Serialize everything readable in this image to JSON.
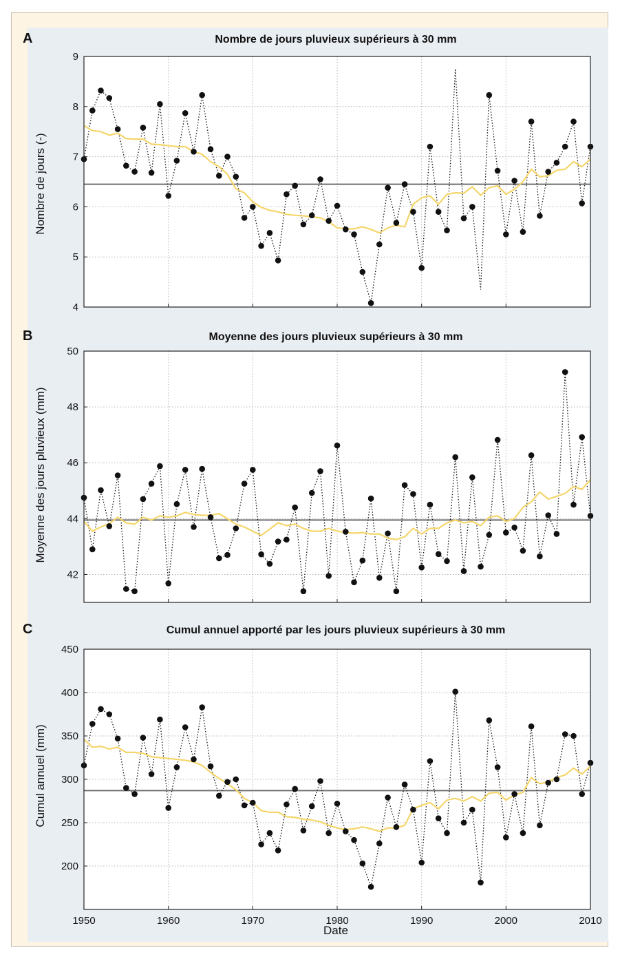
{
  "colors": {
    "frame_bg": "#fdf4e3",
    "inner_bg": "#e9eef3",
    "points": "#111111",
    "mean_line": "#6e6e6e",
    "smooth_line": "#f5d66b"
  },
  "xlabel": "Date",
  "chart_data": [
    {
      "type": "line",
      "letter": "A",
      "title": "Nombre de jours pluvieux supérieurs à 30 mm",
      "ylabel": "Nombre de jours (-)",
      "xlim": [
        1950,
        2010
      ],
      "ylim": [
        4,
        9
      ],
      "yticks": [
        4,
        5,
        6,
        7,
        8,
        9
      ],
      "xticks": [
        1950,
        1960,
        1970,
        1980,
        1990,
        2000,
        2010
      ],
      "grid": true,
      "mean": 6.45,
      "x": [
        1950,
        1951,
        1952,
        1953,
        1954,
        1955,
        1956,
        1957,
        1958,
        1959,
        1960,
        1961,
        1962,
        1963,
        1964,
        1965,
        1966,
        1967,
        1968,
        1969,
        1970,
        1971,
        1972,
        1973,
        1974,
        1975,
        1976,
        1977,
        1978,
        1979,
        1980,
        1981,
        1982,
        1983,
        1984,
        1985,
        1986,
        1987,
        1988,
        1989,
        1990,
        1991,
        1992,
        1993,
        1994,
        1995,
        1996,
        1997,
        1998,
        1999,
        2000,
        2001,
        2002,
        2003,
        2004,
        2005,
        2006,
        2007,
        2008,
        2009,
        2010
      ],
      "series": [
        {
          "values": [
            6.95,
            7.92,
            8.32,
            8.17,
            7.55,
            6.82,
            6.7,
            7.58,
            6.68,
            8.05,
            6.22,
            6.92,
            7.87,
            7.1,
            8.23,
            7.15,
            6.62,
            7.0,
            6.6,
            5.78,
            6.0,
            5.22,
            5.48,
            4.93,
            6.25,
            6.42,
            5.65,
            5.83,
            6.55,
            5.72,
            6.02,
            5.55,
            5.45,
            4.7,
            4.08,
            5.25,
            6.38,
            5.68,
            6.45,
            5.9,
            4.78,
            7.2,
            5.9,
            5.53,
            8.75,
            5.77,
            6.0,
            4.35,
            8.23,
            6.72,
            5.45,
            6.52,
            5.5,
            7.7,
            5.82,
            6.7,
            6.88,
            7.2,
            7.7,
            6.07,
            7.2
          ],
          "missing_markers_for": [
            1994,
            1997
          ]
        },
        {
          "smooth": [
            7.62,
            7.52,
            7.5,
            7.43,
            7.47,
            7.36,
            7.35,
            7.35,
            7.25,
            7.24,
            7.22,
            7.2,
            7.2,
            7.1,
            7.05,
            6.9,
            6.8,
            6.65,
            6.36,
            6.28,
            6.1,
            5.99,
            5.93,
            5.9,
            5.85,
            5.83,
            5.82,
            5.8,
            5.78,
            5.7,
            5.58,
            5.56,
            5.56,
            5.6,
            5.55,
            5.48,
            5.58,
            5.63,
            5.6,
            6.05,
            6.18,
            6.22,
            6.05,
            6.25,
            6.28,
            6.27,
            6.4,
            6.23,
            6.38,
            6.42,
            6.25,
            6.35,
            6.5,
            6.75,
            6.6,
            6.62,
            6.73,
            6.75,
            6.9,
            6.8,
            6.95
          ]
        }
      ]
    },
    {
      "type": "line",
      "letter": "B",
      "title": "Moyenne des jours pluvieux supérieurs à 30 mm",
      "ylabel": "Moyenne des jours pluvieux (mm)",
      "xlim": [
        1950,
        2010
      ],
      "ylim": [
        41,
        50
      ],
      "yticks": [
        42,
        44,
        46,
        48,
        50
      ],
      "xticks": [
        1950,
        1960,
        1970,
        1980,
        1990,
        2000,
        2010
      ],
      "grid": true,
      "mean": 43.95,
      "x": [
        1950,
        1951,
        1952,
        1953,
        1954,
        1955,
        1956,
        1957,
        1958,
        1959,
        1960,
        1961,
        1962,
        1963,
        1964,
        1965,
        1966,
        1967,
        1968,
        1969,
        1970,
        1971,
        1972,
        1973,
        1974,
        1975,
        1976,
        1977,
        1978,
        1979,
        1980,
        1981,
        1982,
        1983,
        1984,
        1985,
        1986,
        1987,
        1988,
        1989,
        1990,
        1991,
        1992,
        1993,
        1994,
        1995,
        1996,
        1997,
        1998,
        1999,
        2000,
        2001,
        2002,
        2003,
        2004,
        2005,
        2006,
        2007,
        2008,
        2009,
        2010
      ],
      "series": [
        {
          "values": [
            44.75,
            42.9,
            45.02,
            43.73,
            45.55,
            41.48,
            41.4,
            44.7,
            45.25,
            45.88,
            41.68,
            44.52,
            45.75,
            43.7,
            45.78,
            44.05,
            42.58,
            42.7,
            43.65,
            45.25,
            45.75,
            42.72,
            42.38,
            43.18,
            43.25,
            44.4,
            41.4,
            44.92,
            45.7,
            41.95,
            46.62,
            43.53,
            41.72,
            42.5,
            44.72,
            41.88,
            43.47,
            41.4,
            45.2,
            44.88,
            42.25,
            44.5,
            42.73,
            42.48,
            46.2,
            42.12,
            45.48,
            42.28,
            43.42,
            46.82,
            43.5,
            43.68,
            42.85,
            46.27,
            42.65,
            44.12,
            43.45,
            49.25,
            44.5,
            46.92,
            44.1
          ]
        },
        {
          "smooth": [
            43.9,
            43.55,
            43.7,
            43.82,
            44.05,
            43.85,
            43.8,
            44.05,
            43.95,
            44.1,
            44.05,
            44.1,
            44.22,
            44.15,
            44.12,
            44.12,
            44.18,
            44.0,
            43.8,
            43.7,
            43.55,
            43.4,
            43.62,
            43.85,
            43.75,
            43.8,
            43.65,
            43.55,
            43.55,
            43.65,
            43.55,
            43.5,
            43.48,
            43.5,
            43.45,
            43.45,
            43.3,
            43.25,
            43.35,
            43.65,
            43.45,
            43.65,
            43.65,
            43.85,
            43.95,
            43.85,
            43.9,
            43.75,
            44.05,
            44.1,
            43.9,
            44.0,
            44.4,
            44.6,
            44.95,
            44.7,
            44.8,
            44.9,
            45.15,
            45.05,
            45.4
          ]
        }
      ]
    },
    {
      "type": "line",
      "letter": "C",
      "title": "Cumul annuel apporté par les jours pluvieux supérieurs à 30 mm",
      "ylabel": "Cumul annuel (mm)",
      "xlim": [
        1950,
        2010
      ],
      "ylim": [
        150,
        450
      ],
      "yticks": [
        200,
        250,
        300,
        350,
        400,
        450
      ],
      "xticks": [
        1950,
        1960,
        1970,
        1980,
        1990,
        2000,
        2010
      ],
      "grid": true,
      "mean": 287,
      "x": [
        1950,
        1951,
        1952,
        1953,
        1954,
        1955,
        1956,
        1957,
        1958,
        1959,
        1960,
        1961,
        1962,
        1963,
        1964,
        1965,
        1966,
        1967,
        1968,
        1969,
        1970,
        1971,
        1972,
        1973,
        1974,
        1975,
        1976,
        1977,
        1978,
        1979,
        1980,
        1981,
        1982,
        1983,
        1984,
        1985,
        1986,
        1987,
        1988,
        1989,
        1990,
        1991,
        1992,
        1993,
        1994,
        1995,
        1996,
        1997,
        1998,
        1999,
        2000,
        2001,
        2002,
        2003,
        2004,
        2005,
        2006,
        2007,
        2008,
        2009,
        2010
      ],
      "series": [
        {
          "values": [
            316,
            364,
            381,
            375,
            347,
            290,
            283,
            348,
            306,
            369,
            267,
            314,
            360,
            323,
            383,
            315,
            281,
            297,
            300,
            270,
            273,
            225,
            238,
            218,
            271,
            289,
            241,
            269,
            298,
            238,
            272,
            240,
            230,
            203,
            176,
            226,
            279,
            245,
            294,
            265,
            204,
            321,
            255,
            238,
            401,
            250,
            265,
            181,
            368,
            314,
            233,
            283,
            238,
            361,
            247,
            296,
            300,
            352,
            350,
            283,
            319
          ]
        },
        {
          "smooth": [
            346,
            337,
            338,
            335,
            337,
            331,
            331,
            330,
            326,
            325,
            324,
            323,
            322,
            320,
            316,
            308,
            301,
            295,
            288,
            278,
            273,
            264,
            262,
            262,
            257,
            256,
            254,
            253,
            251,
            247,
            244,
            242,
            243,
            245,
            243,
            240,
            244,
            244,
            247,
            266,
            270,
            273,
            266,
            276,
            278,
            275,
            280,
            275,
            284,
            285,
            276,
            282,
            285,
            302,
            295,
            297,
            302,
            305,
            313,
            306,
            315
          ]
        }
      ]
    }
  ]
}
